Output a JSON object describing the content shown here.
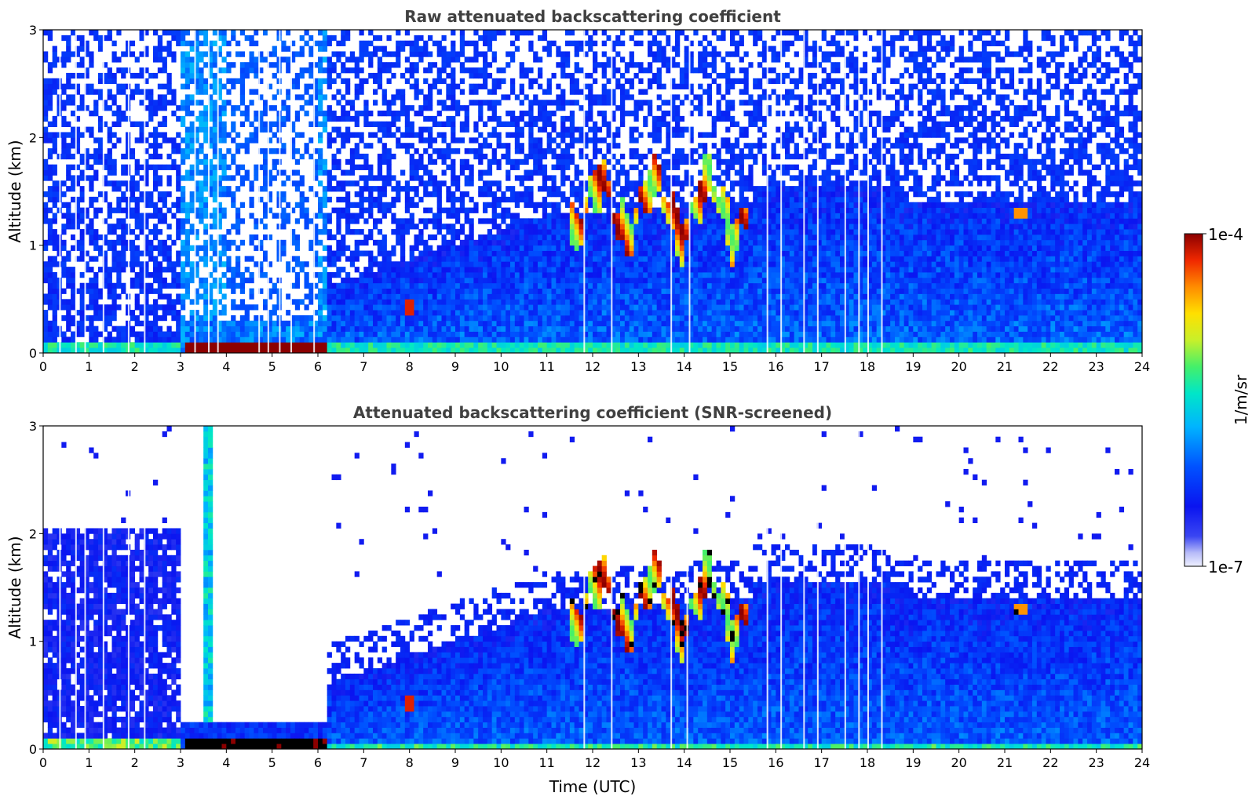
{
  "chart_data": [
    {
      "type": "heatmap",
      "title": "Raw attenuated backscattering coefficient",
      "xlabel": "",
      "ylabel": "Altitude (km)",
      "xlim": [
        0,
        24
      ],
      "ylim": [
        0,
        3
      ],
      "x_ticks": [
        0,
        1,
        2,
        3,
        4,
        5,
        6,
        7,
        8,
        9,
        10,
        11,
        12,
        13,
        14,
        15,
        16,
        17,
        18,
        19,
        20,
        21,
        22,
        23,
        24
      ],
      "y_ticks": [
        0,
        1,
        2,
        3
      ],
      "color_scale": "log10 backscatter, 1e-7 to 1e-4 1/m/sr",
      "features": [
        {
          "name": "surface layer",
          "x": [
            0,
            24
          ],
          "y": [
            0,
            0.1
          ],
          "log10_value": -6.0
        },
        {
          "name": "fog/low cloud",
          "x": [
            3.0,
            6.1
          ],
          "y": [
            0.0,
            0.12
          ],
          "log10_value": -4.0
        },
        {
          "name": "attenuated zone above fog",
          "x": [
            3.0,
            6.1
          ],
          "y": [
            0.3,
            3.0
          ],
          "log10_value": -7.0
        },
        {
          "name": "boundary layer",
          "x": [
            6.1,
            24
          ],
          "y": [
            0.1,
            1.4
          ],
          "log10_value": -6.5
        },
        {
          "name": "aerosol at 8 UTC",
          "x": [
            7.9,
            8.1
          ],
          "y": [
            0.35,
            0.5
          ],
          "log10_value": -4.3
        },
        {
          "name": "clouds",
          "x": [
            11.5,
            15.4
          ],
          "y": [
            1.2,
            1.9
          ],
          "log10_value": -4.5
        },
        {
          "name": "cloud at 21.4 UTC",
          "x": [
            21.2,
            21.5
          ],
          "y": [
            1.25,
            1.35
          ],
          "log10_value": -4.6
        }
      ]
    },
    {
      "type": "heatmap",
      "title": "Attenuated backscattering coefficient (SNR-screened)",
      "xlabel": "Time (UTC)",
      "ylabel": "Altitude (km)",
      "xlim": [
        0,
        24
      ],
      "ylim": [
        0,
        3
      ],
      "x_ticks": [
        0,
        1,
        2,
        3,
        4,
        5,
        6,
        7,
        8,
        9,
        10,
        11,
        12,
        13,
        14,
        15,
        16,
        17,
        18,
        19,
        20,
        21,
        22,
        23,
        24
      ],
      "y_ticks": [
        0,
        1,
        2,
        3
      ],
      "color_scale": "log10 backscatter, 1e-7 to 1e-4 1/m/sr; screened pixels white, saturated pixels black",
      "features": [
        {
          "name": "residual layer",
          "x": [
            0,
            3.1
          ],
          "y": [
            0.1,
            2.05
          ],
          "log10_value": -6.6
        },
        {
          "name": "fog/low cloud (saturated)",
          "x": [
            3.0,
            6.1
          ],
          "y": [
            0.0,
            0.12
          ],
          "log10_value": -3.5
        },
        {
          "name": "boundary layer",
          "x": [
            6.1,
            24
          ],
          "y": [
            0.05,
            1.3
          ],
          "log10_value": -6.5
        },
        {
          "name": "clouds",
          "x": [
            11.5,
            15.4
          ],
          "y": [
            1.2,
            1.9
          ],
          "log10_value": -4.5
        },
        {
          "name": "cloud at 21.4 UTC",
          "x": [
            21.2,
            21.5
          ],
          "y": [
            1.25,
            1.35
          ],
          "log10_value": -4.6
        }
      ]
    }
  ],
  "colorbar": {
    "label": "1/m/sr",
    "max_label": "1e-4",
    "min_label": "1e-7"
  }
}
